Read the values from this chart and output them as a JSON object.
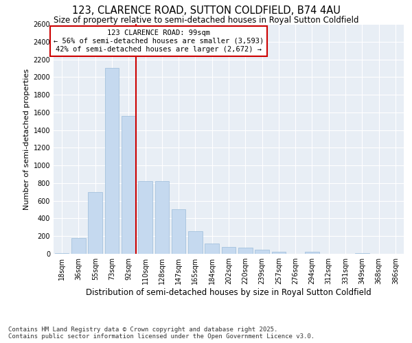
{
  "title": "123, CLARENCE ROAD, SUTTON COLDFIELD, B74 4AU",
  "subtitle": "Size of property relative to semi-detached houses in Royal Sutton Coldfield",
  "xlabel": "Distribution of semi-detached houses by size in Royal Sutton Coldfield",
  "ylabel": "Number of semi-detached properties",
  "categories": [
    "18sqm",
    "36sqm",
    "55sqm",
    "73sqm",
    "92sqm",
    "110sqm",
    "128sqm",
    "147sqm",
    "165sqm",
    "184sqm",
    "202sqm",
    "220sqm",
    "239sqm",
    "257sqm",
    "276sqm",
    "294sqm",
    "312sqm",
    "331sqm",
    "349sqm",
    "368sqm",
    "386sqm"
  ],
  "values": [
    10,
    175,
    695,
    2105,
    1560,
    820,
    820,
    505,
    255,
    120,
    75,
    70,
    45,
    25,
    0,
    20,
    0,
    0,
    10,
    0,
    0
  ],
  "bar_color": "#c5d9ef",
  "bar_edge_color": "#9bbcda",
  "vline_x_index": 4,
  "vline_color": "#cc0000",
  "annotation_title": "123 CLARENCE ROAD: 99sqm",
  "annotation_line1": "← 56% of semi-detached houses are smaller (3,593)",
  "annotation_line2": "42% of semi-detached houses are larger (2,672) →",
  "annotation_box_facecolor": "#ffffff",
  "annotation_box_edgecolor": "#cc0000",
  "ylim": [
    0,
    2600
  ],
  "yticks": [
    0,
    200,
    400,
    600,
    800,
    1000,
    1200,
    1400,
    1600,
    1800,
    2000,
    2200,
    2400,
    2600
  ],
  "background_color": "#ffffff",
  "plot_bg_color": "#e8eef5",
  "footer_text": "Contains HM Land Registry data © Crown copyright and database right 2025.\nContains public sector information licensed under the Open Government Licence v3.0.",
  "title_fontsize": 10.5,
  "subtitle_fontsize": 8.5,
  "xlabel_fontsize": 8.5,
  "ylabel_fontsize": 8,
  "tick_fontsize": 7,
  "annotation_fontsize": 7.5,
  "footer_fontsize": 6.5
}
